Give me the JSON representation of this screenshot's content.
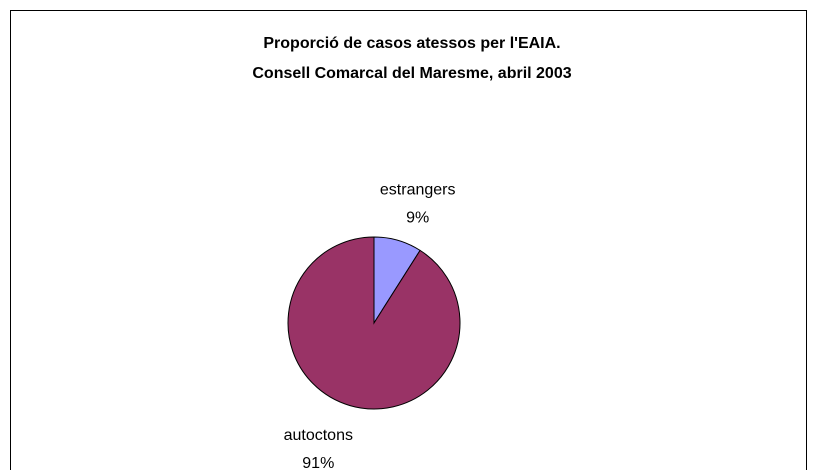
{
  "chart_data": {
    "type": "pie",
    "title": [
      "Proporció de casos atessos per l'EAIA.",
      "Consell Comarcal del Maresme, abril 2003"
    ],
    "categories": [
      "estrangers",
      "autoctons"
    ],
    "values": [
      9,
      91
    ],
    "value_labels": [
      "9%",
      "91%"
    ],
    "colors": [
      "#9999ff",
      "#993366"
    ]
  }
}
